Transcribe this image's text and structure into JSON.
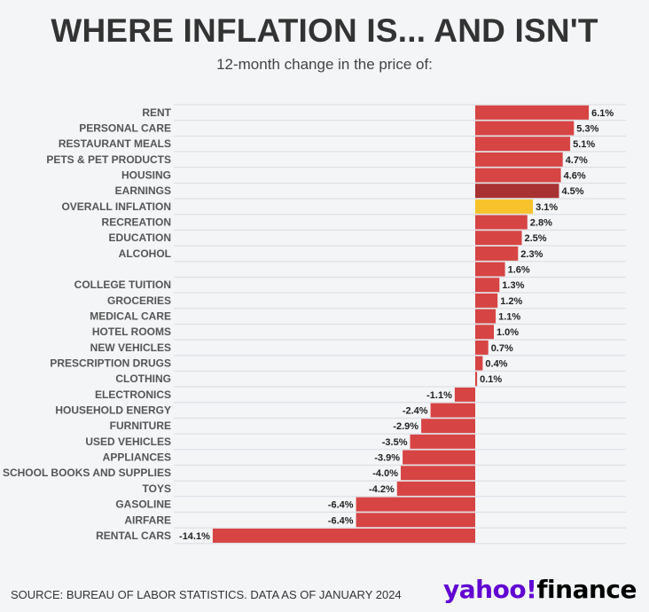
{
  "title": "WHERE INFLATION IS... AND ISN'T",
  "subtitle": "12-month change in the price of:",
  "source": "SOURCE: BUREAU OF LABOR STATISTICS. DATA AS OF JANUARY 2024",
  "logo": {
    "brand": "yahoo!",
    "product": "finance"
  },
  "colors": {
    "default": "#d74444",
    "earnings": "#a83232",
    "overall": "#f7c22b",
    "grid": "#d9dde2",
    "background": "#f3f5f7"
  },
  "chart_data": {
    "type": "bar",
    "orientation": "horizontal",
    "title": "WHERE INFLATION IS... AND ISN'T",
    "subtitle": "12-month change in the price of:",
    "unit": "%",
    "categories": [
      "RENT",
      "PERSONAL CARE",
      "RESTAURANT MEALS",
      "PETS & PET PRODUCTS",
      "HOUSING",
      "EARNINGS",
      "OVERALL INFLATION",
      "RECREATION",
      "EDUCATION",
      "ALCOHOL",
      "",
      "COLLEGE TUITION",
      "GROCERIES",
      "MEDICAL CARE",
      "HOTEL ROOMS",
      "NEW VEHICLES",
      "PRESCRIPTION DRUGS",
      "CLOTHING",
      "ELECTRONICS",
      "HOUSEHOLD ENERGY",
      "FURNITURE",
      "USED VEHICLES",
      "APPLIANCES",
      "SCHOOL BOOKS AND SUPPLIES",
      "TOYS",
      "GASOLINE",
      "AIRFARE",
      "RENTAL CARS"
    ],
    "values": [
      6.1,
      5.3,
      5.1,
      4.7,
      4.6,
      4.5,
      3.1,
      2.8,
      2.5,
      2.3,
      1.6,
      1.3,
      1.2,
      1.1,
      1.0,
      0.7,
      0.4,
      0.1,
      -1.1,
      -2.4,
      -2.9,
      -3.5,
      -3.9,
      -4.0,
      -4.2,
      -6.4,
      -6.4,
      -14.1
    ],
    "value_labels": [
      "6.1%",
      "5.3%",
      "5.1%",
      "4.7%",
      "4.6%",
      "4.5%",
      "3.1%",
      "2.8%",
      "2.5%",
      "2.3%",
      "1.6%",
      "1.3%",
      "1.2%",
      "1.1%",
      "1.0%",
      "0.7%",
      "0.4%",
      "0.1%",
      "-1.1%",
      "-2.4%",
      "-2.9%",
      "-3.5%",
      "-3.9%",
      "-4.0%",
      "-4.2%",
      "-6.4%",
      "-6.4%",
      "-14.1%"
    ],
    "highlight": {
      "EARNINGS": "earnings",
      "OVERALL INFLATION": "overall"
    },
    "xlim": [
      -14.1,
      6.1
    ],
    "grid": true,
    "legend": "none"
  }
}
